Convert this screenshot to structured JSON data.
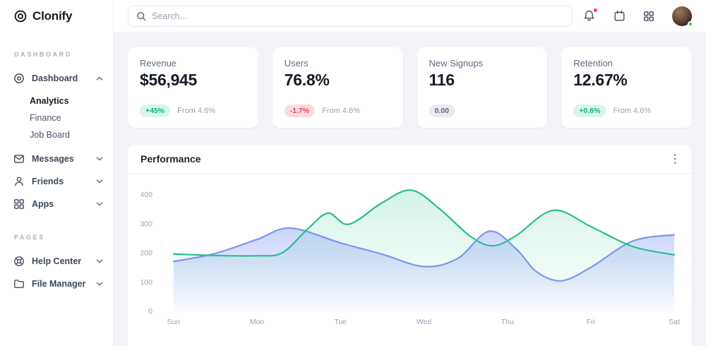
{
  "brand": {
    "name": "Clonify"
  },
  "topbar": {
    "search_placeholder": "Search..."
  },
  "sidebar": {
    "sections": [
      {
        "label": "DASHBOARD"
      },
      {
        "label": "PAGES"
      }
    ],
    "items": [
      {
        "label": "Dashboard",
        "expanded": true
      },
      {
        "label": "Analytics",
        "active": true
      },
      {
        "label": "Finance"
      },
      {
        "label": "Job Board"
      },
      {
        "label": "Messages"
      },
      {
        "label": "Friends"
      },
      {
        "label": "Apps"
      },
      {
        "label": "Help Center"
      },
      {
        "label": "File Manager"
      }
    ]
  },
  "stats": [
    {
      "label": "Revenue",
      "value": "$56,945",
      "badge": "+45%",
      "badge_type": "positive",
      "note": "From 4.6%"
    },
    {
      "label": "Users",
      "value": "76.8%",
      "badge": "-1.7%",
      "badge_type": "negative",
      "note": "From 4.6%"
    },
    {
      "label": "New Signups",
      "value": "116",
      "badge": "0.00",
      "badge_type": "neutral",
      "note": ""
    },
    {
      "label": "Retention",
      "value": "12.67%",
      "badge": "+0.6%",
      "badge_type": "positive",
      "note": "From 4.6%"
    }
  ],
  "colors": {
    "positive": "#12b176",
    "negative": "#e5484d",
    "neutral": "#5f6b7b",
    "notification_dot": "#ef4444",
    "online_dot": "#2bc76b",
    "green_line": "#2abf8a",
    "blue_line": "#7b96f2"
  },
  "chart_data": {
    "type": "area",
    "title": "Performance",
    "x_ticks": [
      "Sun",
      "Mon",
      "Tue",
      "Wed",
      "Thu",
      "Fri",
      "Sat"
    ],
    "y_ticks": [
      0,
      100,
      200,
      300,
      400
    ],
    "ylim": [
      0,
      440
    ],
    "grid": false,
    "legend": "none",
    "series": [
      {
        "name": "green",
        "color": "#2abf8a",
        "points": [
          [
            0,
            196
          ],
          [
            0.5,
            191
          ],
          [
            1,
            190
          ],
          [
            1.3,
            200
          ],
          [
            1.6,
            280
          ],
          [
            1.85,
            336
          ],
          [
            2.1,
            298
          ],
          [
            2.5,
            372
          ],
          [
            2.85,
            415
          ],
          [
            3.2,
            348
          ],
          [
            3.55,
            258
          ],
          [
            3.82,
            224
          ],
          [
            4.1,
            258
          ],
          [
            4.55,
            346
          ],
          [
            5,
            290
          ],
          [
            5.5,
            222
          ],
          [
            6,
            193
          ]
        ]
      },
      {
        "name": "blue",
        "color": "#7b96f2",
        "points": [
          [
            0,
            170
          ],
          [
            0.5,
            198
          ],
          [
            1,
            246
          ],
          [
            1.4,
            285
          ],
          [
            2,
            234
          ],
          [
            2.5,
            195
          ],
          [
            3,
            153
          ],
          [
            3.4,
            180
          ],
          [
            3.78,
            274
          ],
          [
            4.1,
            215
          ],
          [
            4.35,
            135
          ],
          [
            4.65,
            104
          ],
          [
            5,
            150
          ],
          [
            5.5,
            240
          ],
          [
            6,
            262
          ]
        ]
      }
    ]
  }
}
